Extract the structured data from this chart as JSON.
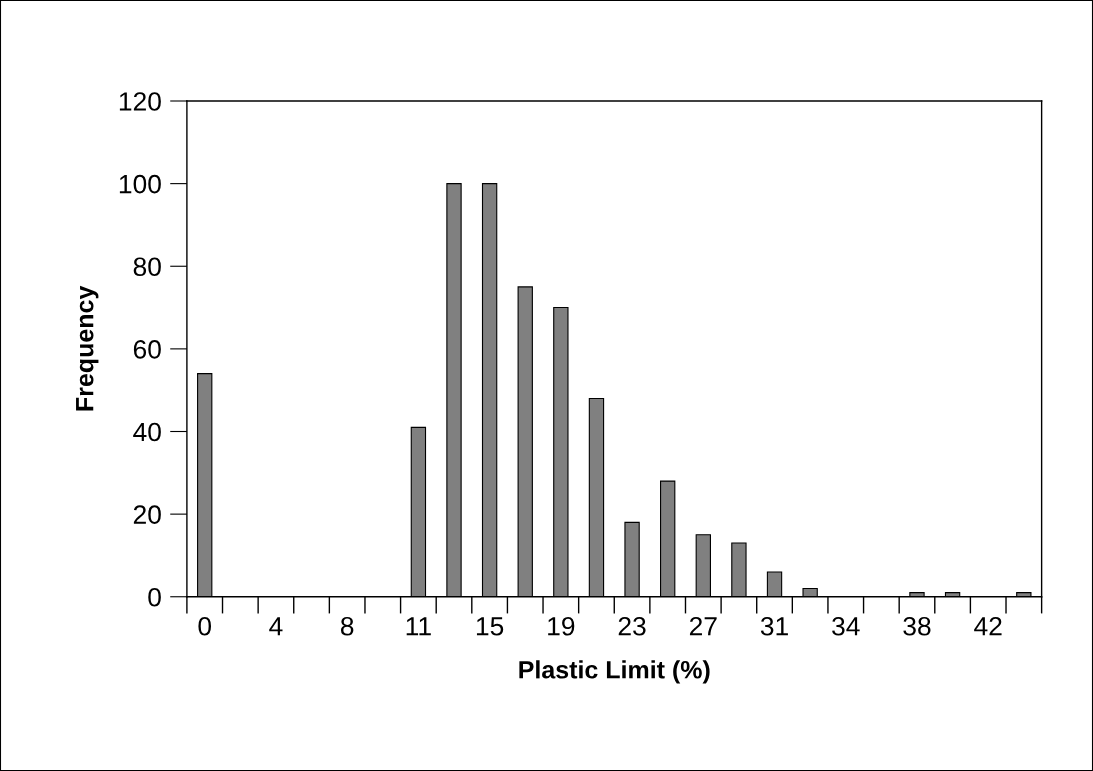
{
  "chart_data": {
    "type": "bar",
    "xlabel": "Plastic Limit (%)",
    "ylabel": "Frequency",
    "categories": [
      "0",
      null,
      "4",
      null,
      "8",
      null,
      "11",
      null,
      "15",
      null,
      "19",
      null,
      "23",
      null,
      "27",
      null,
      "31",
      null,
      "34",
      null,
      "38",
      null,
      "42",
      null
    ],
    "values": [
      54,
      0,
      0,
      0,
      0,
      0,
      41,
      100,
      100,
      75,
      70,
      48,
      18,
      28,
      15,
      13,
      6,
      2,
      0,
      0,
      1,
      1,
      0,
      1
    ],
    "color": "#808080",
    "ylim": [
      0,
      120
    ],
    "yticks": [
      0,
      20,
      40,
      60,
      80,
      100,
      120
    ],
    "grid": false,
    "legend": false
  }
}
